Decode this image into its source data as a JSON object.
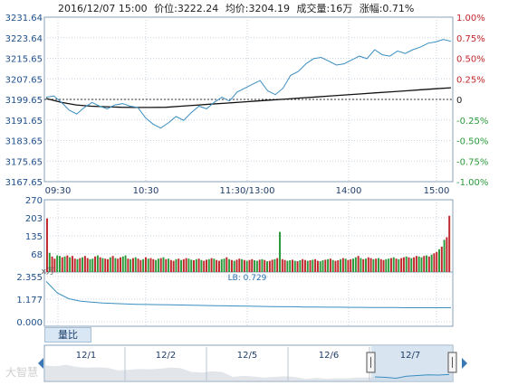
{
  "header": {
    "datetime": "2016/12/07 15:00",
    "price_label": "价位:3222.24",
    "avg_label": "均价:3204.19",
    "volume_label": "成交量:16万",
    "change_label": "涨幅:0.71%"
  },
  "tabs": [
    {
      "label": "量比"
    }
  ],
  "watermark": "大智慧",
  "colors": {
    "price_line": "#3a8ec0",
    "avg_line": "#111111",
    "up": "#c0262b",
    "down": "#2a9a3a",
    "ratio_line": "#3a8ec0",
    "axis_left": "#1e4f8a",
    "axis_pct_up": "#c0262b",
    "axis_pct_down": "#2a9a3a",
    "grid": "#c8d4e0",
    "frame": "#8aa0b8",
    "navigator_bg": "#eef3f8",
    "navigator_sel": "#c7d9ea"
  },
  "chart_data": [
    {
      "type": "line",
      "name": "price-panel",
      "ylim": [
        3167.65,
        3231.64
      ],
      "y_ticks": [
        "3231.64",
        "3223.64",
        "3215.65",
        "3207.65",
        "3199.65",
        "3191.65",
        "3183.65",
        "3175.65",
        "3167.65"
      ],
      "pct_ticks": [
        "1.00%",
        "0.75%",
        "0.50%",
        "0.25%",
        "0",
        "-0.25%",
        "-0.50%",
        "-0.75%",
        "-1.00%"
      ],
      "x_ticks": [
        "09:30",
        "10:30",
        "11:30/13:00",
        "14:00",
        "15:00"
      ],
      "prev_close": 3199.65,
      "series": [
        {
          "key": "price",
          "values": [
            3200.5,
            3201.0,
            3198.5,
            3195.5,
            3194.0,
            3196.5,
            3198.5,
            3197.0,
            3196.0,
            3197.5,
            3198.0,
            3197.0,
            3196.5,
            3192.5,
            3190.0,
            3188.5,
            3190.5,
            3193.0,
            3191.5,
            3194.5,
            3197.0,
            3196.0,
            3198.5,
            3200.5,
            3199.0,
            3202.5,
            3204.0,
            3205.5,
            3207.0,
            3203.0,
            3201.5,
            3204.0,
            3209.0,
            3210.5,
            3213.5,
            3215.5,
            3216.0,
            3214.5,
            3213.0,
            3213.5,
            3215.0,
            3216.5,
            3215.5,
            3219.0,
            3217.0,
            3216.5,
            3218.5,
            3217.5,
            3219.0,
            3220.0,
            3221.5,
            3222.0,
            3223.0,
            3222.24
          ]
        },
        {
          "key": "average",
          "values": [
            3200.0,
            3198.5,
            3197.5,
            3197.0,
            3196.8,
            3196.6,
            3196.5,
            3196.5,
            3196.6,
            3197.0,
            3197.4,
            3197.8,
            3198.2,
            3198.6,
            3199.0,
            3199.4,
            3199.8,
            3200.2,
            3200.6,
            3201.0,
            3201.4,
            3201.8,
            3202.2,
            3202.6,
            3203.0,
            3203.4,
            3203.8,
            3204.19
          ]
        }
      ]
    },
    {
      "type": "bar",
      "name": "volume-panel",
      "ylim": [
        0,
        270
      ],
      "y_ticks": [
        "270",
        "203",
        "135",
        "68"
      ],
      "unit_label": "x万",
      "values": [
        200,
        72,
        58,
        50,
        62,
        60,
        55,
        58,
        62,
        55,
        60,
        50,
        48,
        52,
        55,
        60,
        52,
        48,
        50,
        58,
        62,
        55,
        52,
        50,
        48,
        55,
        60,
        52,
        50,
        55,
        58,
        62,
        50,
        48,
        52,
        55,
        50,
        45,
        48,
        55,
        50,
        52,
        48,
        45,
        50,
        52,
        55,
        48,
        50,
        45,
        42,
        48,
        50,
        45,
        48,
        52,
        50,
        46,
        44,
        48,
        50,
        45,
        42,
        46,
        48,
        52,
        50,
        45,
        42,
        48,
        50,
        55,
        48,
        45,
        42,
        46,
        50,
        48,
        45,
        42,
        45,
        48,
        44,
        42,
        46,
        48,
        45,
        40,
        42,
        46,
        48,
        52,
        150,
        48,
        45,
        42,
        44,
        46,
        42,
        40,
        44,
        48,
        45,
        42,
        44,
        46,
        48,
        42,
        40,
        44,
        46,
        48,
        50,
        45,
        42,
        44,
        48,
        52,
        50,
        45,
        48,
        50,
        55,
        60,
        52,
        48,
        50,
        55,
        52,
        48,
        50,
        52,
        48,
        45,
        48,
        50,
        52,
        55,
        50,
        48,
        52,
        55,
        58,
        55,
        52,
        55,
        60,
        58,
        55,
        60,
        62,
        58,
        65,
        70,
        75,
        85,
        95,
        120,
        130,
        210
      ],
      "up_mask_pattern": [
        1,
        0,
        1,
        1,
        0,
        0,
        1,
        0,
        1,
        0,
        1,
        1,
        0
      ]
    },
    {
      "type": "line",
      "name": "volume-ratio-panel",
      "ylim": [
        0,
        2.355
      ],
      "y_ticks": [
        "2.355",
        "1.177",
        "0.000"
      ],
      "annotation": "LB: 0.729",
      "values": [
        2.1,
        1.5,
        1.2,
        1.08,
        1.02,
        0.98,
        0.95,
        0.93,
        0.91,
        0.9,
        0.89,
        0.88,
        0.87,
        0.86,
        0.85,
        0.84,
        0.83,
        0.82,
        0.81,
        0.8,
        0.79,
        0.78,
        0.78,
        0.77,
        0.77,
        0.76,
        0.76,
        0.75,
        0.75,
        0.74,
        0.74,
        0.74,
        0.73,
        0.73,
        0.73,
        0.73,
        0.729
      ]
    },
    {
      "type": "area",
      "name": "navigator",
      "x_ticks": [
        "12/1",
        "12/2",
        "12/5",
        "12/6",
        "12/7"
      ],
      "values": [
        3285,
        3280,
        3290,
        3275,
        3270,
        3272,
        3268,
        3250,
        3255,
        3260,
        3258,
        3262,
        3270,
        3266,
        3240,
        3235,
        3245,
        3238,
        3205,
        3212,
        3208,
        3200,
        3205,
        3210,
        3204,
        3190,
        3198,
        3192,
        3196,
        3195,
        3201,
        3200,
        3205,
        3202,
        3196,
        3210,
        3215,
        3220,
        3218,
        3222
      ]
    }
  ]
}
